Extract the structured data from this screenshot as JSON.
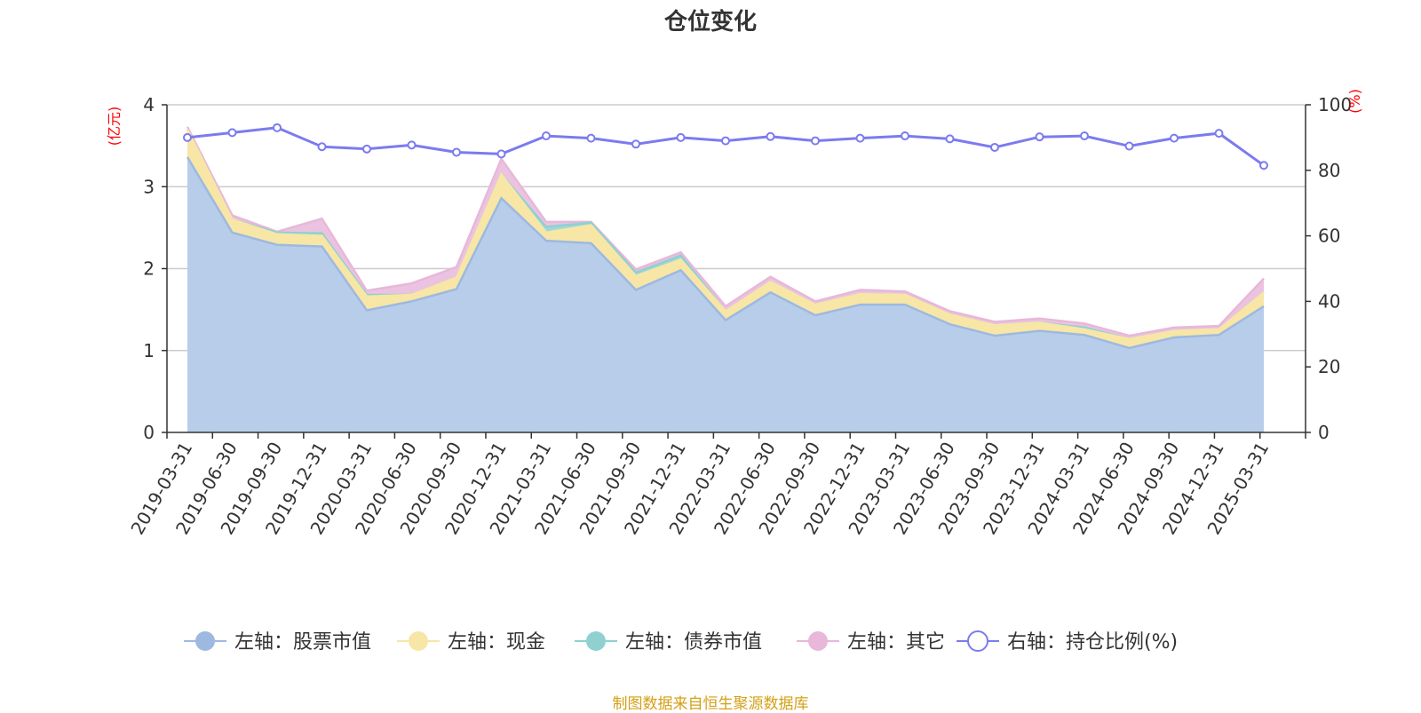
{
  "chart_data": {
    "type": "area",
    "title": "仓位变化",
    "source": "制图数据来自恒生聚源数据库",
    "left_axis_unit": "(亿元)",
    "right_axis_unit": "(%)",
    "left_ylim": [
      0,
      4
    ],
    "left_ticks": [
      "0",
      "1",
      "2",
      "3",
      "4"
    ],
    "right_ylim": [
      0,
      100
    ],
    "right_ticks": [
      "0",
      "20",
      "40",
      "60",
      "80",
      "100"
    ],
    "x": [
      "2019-03-31",
      "2019-06-30",
      "2019-09-30",
      "2019-12-31",
      "2020-03-31",
      "2020-06-30",
      "2020-09-30",
      "2020-12-31",
      "2021-03-31",
      "2021-06-30",
      "2021-09-30",
      "2021-12-31",
      "2022-03-31",
      "2022-06-30",
      "2022-09-30",
      "2022-12-31",
      "2023-03-31",
      "2023-06-30",
      "2023-09-30",
      "2023-12-31",
      "2024-03-31",
      "2024-06-30",
      "2024-09-30",
      "2024-12-31",
      "2025-03-31"
    ],
    "stacked_series": [
      {
        "name": "左轴：股票市值",
        "color": "#9db9e0",
        "fill": "#b8cdea",
        "values": [
          3.36,
          2.44,
          2.29,
          2.27,
          1.49,
          1.6,
          1.75,
          2.86,
          2.34,
          2.31,
          1.74,
          1.98,
          1.37,
          1.71,
          1.43,
          1.56,
          1.56,
          1.32,
          1.18,
          1.24,
          1.19,
          1.03,
          1.16,
          1.19,
          1.54
        ]
      },
      {
        "name": "左轴：现金",
        "color": "#f7e6a5",
        "fill": "#f7e6a5",
        "values": [
          0.34,
          0.16,
          0.13,
          0.13,
          0.17,
          0.08,
          0.14,
          0.29,
          0.1,
          0.22,
          0.17,
          0.13,
          0.11,
          0.13,
          0.13,
          0.13,
          0.12,
          0.12,
          0.13,
          0.1,
          0.07,
          0.11,
          0.08,
          0.07,
          0.17
        ]
      },
      {
        "name": "左轴：债券市值",
        "color": "#8fd1d1",
        "fill": "#a0d8d8",
        "values": [
          0.0,
          0.0,
          0.02,
          0.03,
          0.02,
          0.0,
          0.0,
          0.0,
          0.07,
          0.03,
          0.04,
          0.05,
          0.0,
          0.0,
          0.0,
          0.0,
          0.0,
          0.0,
          0.0,
          0.0,
          0.02,
          0.0,
          0.0,
          0.0,
          0.0
        ]
      },
      {
        "name": "左轴：其它",
        "color": "#e8b7da",
        "fill": "#ebc3e0",
        "values": [
          0.03,
          0.05,
          0.01,
          0.18,
          0.05,
          0.14,
          0.13,
          0.19,
          0.06,
          0.01,
          0.04,
          0.04,
          0.06,
          0.06,
          0.04,
          0.05,
          0.04,
          0.04,
          0.04,
          0.05,
          0.05,
          0.04,
          0.04,
          0.04,
          0.17
        ]
      }
    ],
    "line_series": {
      "name": "右轴：持仓比例(%)",
      "color": "#7b7bf0",
      "values": [
        90,
        91.5,
        93,
        87.2,
        86.5,
        87.7,
        85.5,
        85,
        90.5,
        89.8,
        88,
        90,
        89,
        90.3,
        89,
        89.8,
        90.5,
        89.6,
        87,
        90.2,
        90.5,
        87.4,
        89.8,
        91.3,
        81.5
      ]
    },
    "legend_position": "bottom",
    "grid": true
  }
}
